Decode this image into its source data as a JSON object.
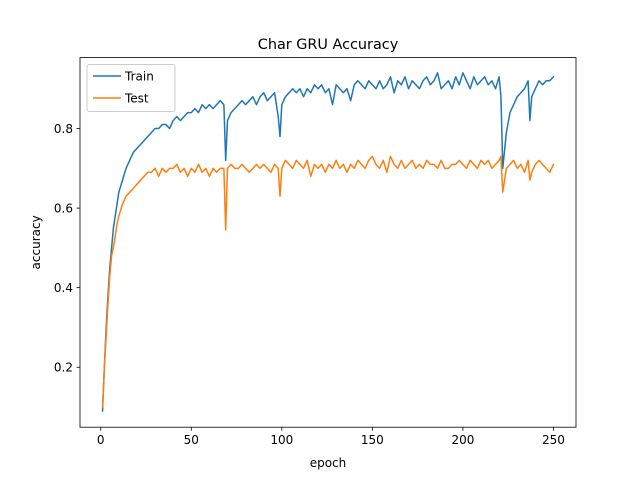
{
  "chart_data": {
    "type": "line",
    "title": "Char GRU Accuracy",
    "xlabel": "epoch",
    "ylabel": "accuracy",
    "xlim": [
      -11.45,
      262.45
    ],
    "ylim": [
      0.0493,
      0.9783
    ],
    "xticks": [
      0,
      50,
      100,
      150,
      200,
      250
    ],
    "yticks": [
      0.2,
      0.4,
      0.6,
      0.8
    ],
    "grid": false,
    "legend": "top-left",
    "series": [
      {
        "name": "Train",
        "color": "#1f77b4",
        "x": [
          1,
          2,
          3,
          4,
          5,
          6,
          7,
          8,
          9,
          10,
          12,
          14,
          16,
          18,
          20,
          22,
          24,
          26,
          28,
          30,
          32,
          34,
          36,
          38,
          40,
          42,
          44,
          46,
          48,
          50,
          52,
          54,
          56,
          58,
          60,
          62,
          64,
          66,
          68,
          69,
          70,
          72,
          74,
          76,
          78,
          80,
          82,
          84,
          86,
          88,
          90,
          92,
          94,
          96,
          98,
          99,
          100,
          102,
          104,
          106,
          108,
          110,
          112,
          114,
          116,
          118,
          120,
          122,
          124,
          126,
          128,
          130,
          132,
          134,
          136,
          138,
          140,
          142,
          144,
          146,
          148,
          150,
          152,
          154,
          156,
          158,
          160,
          162,
          164,
          166,
          168,
          170,
          172,
          174,
          176,
          178,
          180,
          182,
          184,
          186,
          188,
          190,
          192,
          194,
          196,
          198,
          200,
          202,
          204,
          206,
          208,
          210,
          212,
          214,
          216,
          218,
          220,
          221,
          222,
          224,
          226,
          228,
          230,
          232,
          234,
          236,
          237,
          238,
          240,
          242,
          244,
          246,
          248,
          250
        ],
        "y": [
          0.09,
          0.2,
          0.3,
          0.38,
          0.45,
          0.5,
          0.55,
          0.58,
          0.61,
          0.64,
          0.67,
          0.7,
          0.72,
          0.74,
          0.75,
          0.76,
          0.77,
          0.78,
          0.79,
          0.8,
          0.8,
          0.81,
          0.81,
          0.8,
          0.82,
          0.83,
          0.82,
          0.83,
          0.84,
          0.84,
          0.85,
          0.84,
          0.86,
          0.85,
          0.86,
          0.85,
          0.86,
          0.87,
          0.86,
          0.72,
          0.82,
          0.84,
          0.85,
          0.86,
          0.87,
          0.86,
          0.87,
          0.88,
          0.86,
          0.88,
          0.89,
          0.87,
          0.88,
          0.89,
          0.83,
          0.78,
          0.86,
          0.88,
          0.89,
          0.9,
          0.89,
          0.9,
          0.88,
          0.9,
          0.89,
          0.91,
          0.9,
          0.91,
          0.89,
          0.9,
          0.86,
          0.91,
          0.9,
          0.89,
          0.9,
          0.87,
          0.91,
          0.92,
          0.91,
          0.9,
          0.92,
          0.91,
          0.9,
          0.92,
          0.9,
          0.91,
          0.93,
          0.89,
          0.92,
          0.91,
          0.93,
          0.9,
          0.92,
          0.91,
          0.9,
          0.92,
          0.93,
          0.91,
          0.92,
          0.94,
          0.9,
          0.91,
          0.92,
          0.9,
          0.93,
          0.91,
          0.94,
          0.92,
          0.9,
          0.93,
          0.91,
          0.92,
          0.93,
          0.91,
          0.92,
          0.9,
          0.93,
          0.88,
          0.7,
          0.79,
          0.84,
          0.86,
          0.88,
          0.89,
          0.9,
          0.92,
          0.82,
          0.88,
          0.9,
          0.92,
          0.91,
          0.92,
          0.92,
          0.93
        ]
      },
      {
        "name": "Test",
        "color": "#ff7f0e",
        "x": [
          1,
          2,
          3,
          4,
          5,
          6,
          7,
          8,
          9,
          10,
          12,
          14,
          16,
          18,
          20,
          22,
          24,
          26,
          28,
          30,
          32,
          34,
          36,
          38,
          40,
          42,
          44,
          46,
          48,
          50,
          52,
          54,
          56,
          58,
          60,
          62,
          64,
          66,
          68,
          69,
          70,
          72,
          74,
          76,
          78,
          80,
          82,
          84,
          86,
          88,
          90,
          92,
          94,
          96,
          98,
          99,
          100,
          102,
          104,
          106,
          108,
          110,
          112,
          114,
          116,
          118,
          120,
          122,
          124,
          126,
          128,
          130,
          132,
          134,
          136,
          138,
          140,
          142,
          144,
          146,
          148,
          150,
          152,
          154,
          156,
          158,
          160,
          162,
          164,
          166,
          168,
          170,
          172,
          174,
          176,
          178,
          180,
          182,
          184,
          186,
          188,
          190,
          192,
          194,
          196,
          198,
          200,
          202,
          204,
          206,
          208,
          210,
          212,
          214,
          216,
          218,
          220,
          221,
          222,
          224,
          226,
          228,
          230,
          232,
          234,
          236,
          237,
          238,
          240,
          242,
          244,
          246,
          248,
          250
        ],
        "y": [
          0.1,
          0.2,
          0.28,
          0.36,
          0.43,
          0.48,
          0.5,
          0.53,
          0.56,
          0.58,
          0.61,
          0.63,
          0.64,
          0.65,
          0.66,
          0.67,
          0.68,
          0.69,
          0.69,
          0.7,
          0.68,
          0.7,
          0.69,
          0.7,
          0.7,
          0.71,
          0.69,
          0.7,
          0.68,
          0.7,
          0.69,
          0.71,
          0.69,
          0.7,
          0.68,
          0.7,
          0.69,
          0.7,
          0.7,
          0.545,
          0.7,
          0.71,
          0.7,
          0.7,
          0.71,
          0.7,
          0.69,
          0.7,
          0.71,
          0.7,
          0.71,
          0.7,
          0.69,
          0.71,
          0.7,
          0.63,
          0.7,
          0.72,
          0.71,
          0.7,
          0.72,
          0.71,
          0.7,
          0.72,
          0.68,
          0.71,
          0.7,
          0.71,
          0.69,
          0.71,
          0.7,
          0.72,
          0.7,
          0.71,
          0.69,
          0.71,
          0.7,
          0.72,
          0.71,
          0.7,
          0.72,
          0.73,
          0.71,
          0.7,
          0.72,
          0.69,
          0.73,
          0.71,
          0.7,
          0.72,
          0.7,
          0.71,
          0.72,
          0.7,
          0.71,
          0.7,
          0.72,
          0.71,
          0.71,
          0.7,
          0.72,
          0.7,
          0.7,
          0.71,
          0.71,
          0.72,
          0.71,
          0.7,
          0.72,
          0.71,
          0.7,
          0.72,
          0.71,
          0.72,
          0.7,
          0.71,
          0.72,
          0.73,
          0.64,
          0.7,
          0.71,
          0.72,
          0.7,
          0.71,
          0.69,
          0.72,
          0.67,
          0.69,
          0.71,
          0.72,
          0.71,
          0.7,
          0.69,
          0.71
        ]
      }
    ]
  }
}
